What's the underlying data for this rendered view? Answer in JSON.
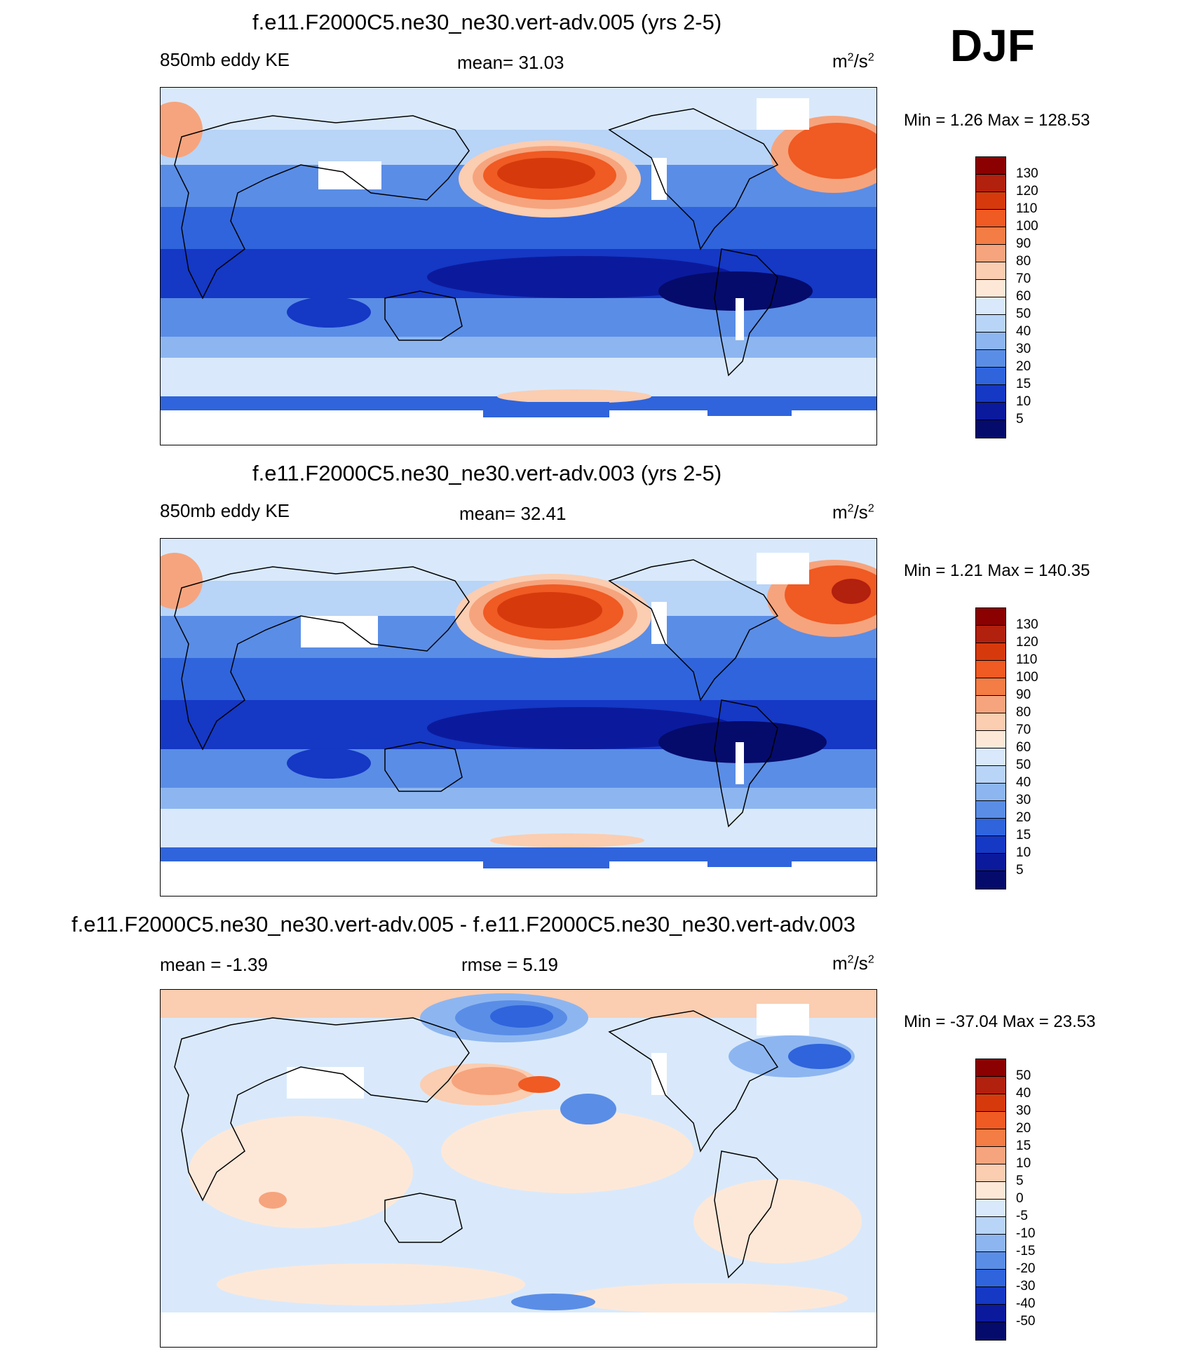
{
  "season": "DJF",
  "panels": [
    {
      "title": "f.e11.F2000C5.ne30_ne30.vert-adv.005 (yrs 2-5)",
      "left_label": "850mb eddy KE",
      "center_label": "mean=  31.03",
      "units_base": "m",
      "units_exp1": "2",
      "units_mid": "/s",
      "units_exp2": "2",
      "minmax": "Min =    1.26 Max = 128.53"
    },
    {
      "title": "f.e11.F2000C5.ne30_ne30.vert-adv.003 (yrs 2-5)",
      "left_label": "850mb eddy KE",
      "center_label": "mean=  32.41",
      "units_base": "m",
      "units_exp1": "2",
      "units_mid": "/s",
      "units_exp2": "2",
      "minmax": "Min =    1.21 Max = 140.35"
    },
    {
      "title": "f.e11.F2000C5.ne30_ne30.vert-adv.005 - f.e11.F2000C5.ne30_ne30.vert-adv.003",
      "left_label": "mean =  -1.39",
      "center_label": "rmse =   5.19",
      "units_base": "m",
      "units_exp1": "2",
      "units_mid": "/s",
      "units_exp2": "2",
      "minmax": "Min = -37.04 Max =  23.53"
    }
  ],
  "chart_data": [
    {
      "type": "heatmap",
      "title": "f.e11.F2000C5.ne30_ne30.vert-adv.005 (yrs 2-5)",
      "variable": "850mb eddy KE",
      "mean": 31.03,
      "min": 1.26,
      "max": 128.53,
      "units": "m2/s2",
      "colorbar_levels": [
        130,
        120,
        110,
        100,
        90,
        80,
        70,
        60,
        50,
        40,
        30,
        20,
        15,
        10,
        5
      ],
      "colorbar_colors": [
        "#8b0000",
        "#b2200e",
        "#d63a0c",
        "#f05a23",
        "#f47c45",
        "#f6a47d",
        "#fbcdb1",
        "#fde8d8",
        "#d9e9fb",
        "#b8d4f7",
        "#8db6f0",
        "#5a8de6",
        "#2f64dc",
        "#1538c5",
        "#0b1a9c",
        "#050b6b"
      ]
    },
    {
      "type": "heatmap",
      "title": "f.e11.F2000C5.ne30_ne30.vert-adv.003 (yrs 2-5)",
      "variable": "850mb eddy KE",
      "mean": 32.41,
      "min": 1.21,
      "max": 140.35,
      "units": "m2/s2",
      "colorbar_levels": [
        130,
        120,
        110,
        100,
        90,
        80,
        70,
        60,
        50,
        40,
        30,
        20,
        15,
        10,
        5
      ],
      "colorbar_colors": [
        "#8b0000",
        "#b2200e",
        "#d63a0c",
        "#f05a23",
        "#f47c45",
        "#f6a47d",
        "#fbcdb1",
        "#fde8d8",
        "#d9e9fb",
        "#b8d4f7",
        "#8db6f0",
        "#5a8de6",
        "#2f64dc",
        "#1538c5",
        "#0b1a9c",
        "#050b6b"
      ]
    },
    {
      "type": "heatmap",
      "title": "f.e11.F2000C5.ne30_ne30.vert-adv.005 - f.e11.F2000C5.ne30_ne30.vert-adv.003",
      "mean": -1.39,
      "rmse": 5.19,
      "min": -37.04,
      "max": 23.53,
      "units": "m2/s2",
      "colorbar_levels": [
        50,
        40,
        30,
        20,
        15,
        10,
        5,
        0,
        -5,
        -10,
        -15,
        -20,
        -30,
        -40,
        -50
      ],
      "colorbar_colors": [
        "#8b0000",
        "#b2200e",
        "#d63a0c",
        "#f05a23",
        "#f47c45",
        "#f6a47d",
        "#fbcdb1",
        "#fde8d8",
        "#d9e9fb",
        "#b8d4f7",
        "#8db6f0",
        "#5a8de6",
        "#2f64dc",
        "#1538c5",
        "#0b1a9c",
        "#050b6b"
      ]
    }
  ]
}
